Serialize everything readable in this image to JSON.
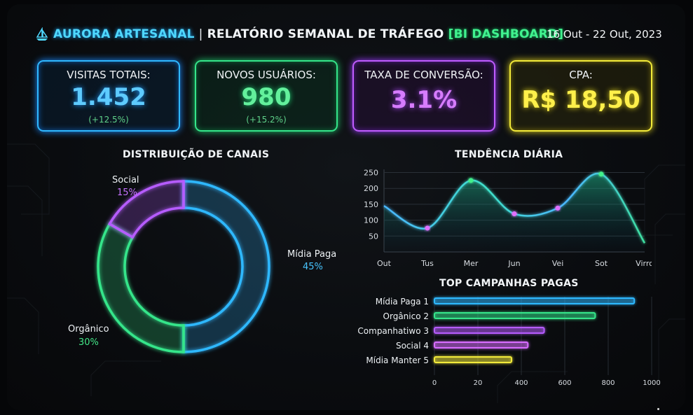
{
  "header": {
    "brand": "AURORA ARTESANAL",
    "separator": "|",
    "title": "RELATÓRIO SEMANAL DE TRÁFEGO",
    "tag": "[BI DASHBOARD]",
    "date_range": "16 Out - 22 Out, 2023"
  },
  "kpis": [
    {
      "label": "VISITAS TOTAIS:",
      "value": "1.452",
      "change": "(+12.5%)",
      "color": "#5ecbff"
    },
    {
      "label": "NOVOS USUÁRIOS:",
      "value": "980",
      "change": "(+15.2%)",
      "color": "#63f09c"
    },
    {
      "label": "TAXA DE CONVERSÃO:",
      "value": "3.1%",
      "color": "#d77cff"
    },
    {
      "label": "CPA:",
      "value": "R$ 18,50",
      "color": "#fff04a"
    }
  ],
  "chart_data": [
    {
      "type": "pie",
      "title": "DISTRIBUIÇÃO DE CANAIS",
      "donut": true,
      "slices": [
        {
          "label": "Mídia Paga",
          "pct_label": "45%",
          "value": 45,
          "color": "#2fb8ff"
        },
        {
          "label": "Orgânico",
          "pct_label": "30%",
          "value": 30,
          "color": "#35e58a"
        },
        {
          "label": "Social",
          "pct_label": "15%",
          "value": 15,
          "color": "#b65cff"
        }
      ]
    },
    {
      "type": "area",
      "title": "TENDÊNCIA DIÁRIA",
      "categories": [
        "Out",
        "Tus",
        "Mer",
        "Jun",
        "Vei",
        "Sot",
        "Virro"
      ],
      "values": [
        145,
        75,
        225,
        120,
        138,
        245,
        28
      ],
      "yticks": [
        50,
        100,
        150,
        200,
        250
      ],
      "ylim": [
        0,
        260
      ],
      "grid": true,
      "marker_colors": [
        "",
        "#e070ff",
        "#43f08a",
        "#e070ff",
        "#e070ff",
        "#43f08a",
        ""
      ]
    },
    {
      "type": "bar",
      "orientation": "horizontal",
      "title": "TOP CAMPANHAS PAGAS",
      "categories": [
        "Mídia Paga 1",
        "Orgânico 2",
        "Companhatiwo 3",
        "Social 4",
        "Mídia Manter 5"
      ],
      "values": [
        920,
        740,
        505,
        430,
        355
      ],
      "colors": [
        "#2fb8ff",
        "#35e58a",
        "#b65cff",
        "#d86cff",
        "#f2ea3a"
      ],
      "xticks": [
        0,
        20,
        400,
        600,
        800,
        1000
      ],
      "xlim": [
        0,
        1000
      ]
    }
  ]
}
